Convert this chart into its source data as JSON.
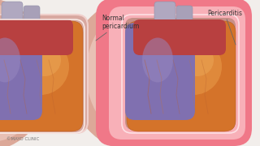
{
  "bg_color": "#f2eeeb",
  "left_label": "Normal\npericardium",
  "right_label": "Pericarditis",
  "mayo_text": "©MAYO CLINIC",
  "label_fontsize": 5.5,
  "mayo_fontsize": 4.0,
  "heart_orange": "#d4732a",
  "heart_orange2": "#e08840",
  "heart_purple": "#8070b0",
  "heart_purple2": "#9888c0",
  "bg_pink": "#e8b8b0",
  "bg_pink2": "#d4a098",
  "peri_normal": "#f0d0cc",
  "peri_inflamed": "#f07888",
  "peri_inflamed2": "#f8a0a8",
  "white_line": "#fde8e8",
  "vessel_color": "#b8b0c8",
  "text_color": "#333333",
  "line_color": "#666666"
}
